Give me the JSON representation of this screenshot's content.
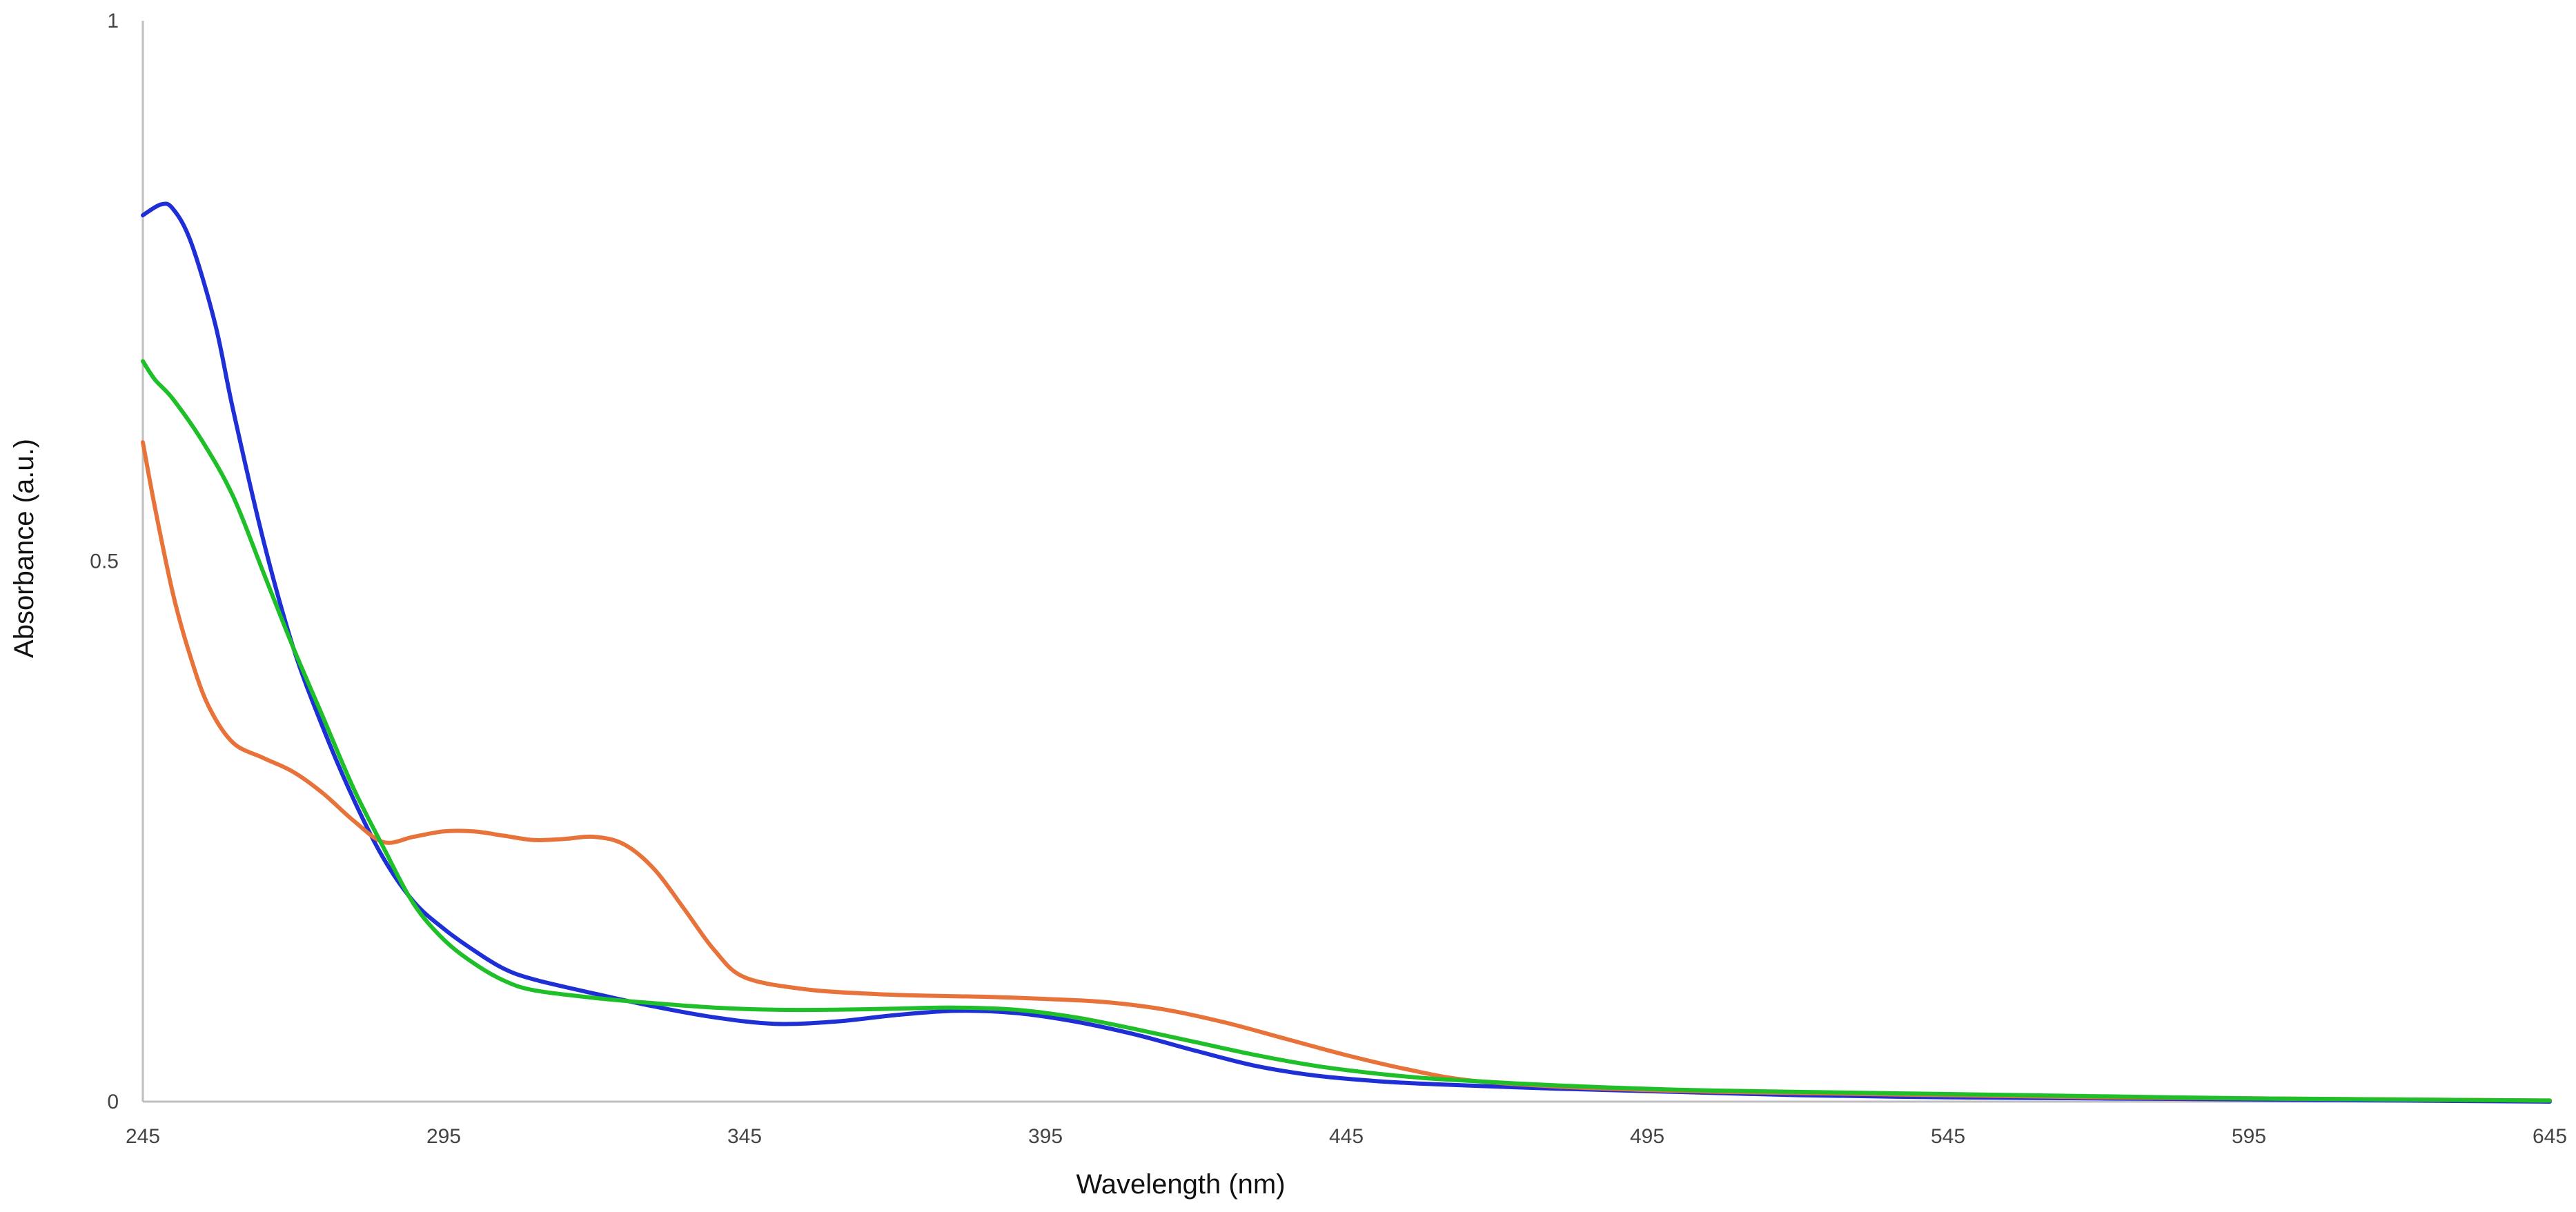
{
  "chart_data": {
    "type": "line",
    "title": "",
    "xlabel": "Wavelength (nm)",
    "ylabel": "Absorbance (a.u.)",
    "xlim": [
      245,
      645
    ],
    "ylim": [
      0,
      1
    ],
    "x_ticks": [
      "245",
      "295",
      "345",
      "395",
      "445",
      "495",
      "545",
      "595",
      "645"
    ],
    "y_ticks": [
      "0",
      "0.5",
      "1"
    ],
    "grid": false,
    "legend": "none",
    "series": [
      {
        "color": "#1f2fd6",
        "points": [
          [
            245,
            0.82
          ],
          [
            248,
            0.83
          ],
          [
            250,
            0.826
          ],
          [
            253,
            0.795
          ],
          [
            257,
            0.72
          ],
          [
            260,
            0.64
          ],
          [
            265,
            0.52
          ],
          [
            270,
            0.42
          ],
          [
            275,
            0.345
          ],
          [
            280,
            0.28
          ],
          [
            285,
            0.225
          ],
          [
            290,
            0.185
          ],
          [
            295,
            0.16
          ],
          [
            300,
            0.14
          ],
          [
            305,
            0.123
          ],
          [
            310,
            0.113
          ],
          [
            320,
            0.1
          ],
          [
            330,
            0.088
          ],
          [
            340,
            0.078
          ],
          [
            350,
            0.072
          ],
          [
            360,
            0.074
          ],
          [
            370,
            0.08
          ],
          [
            380,
            0.084
          ],
          [
            390,
            0.082
          ],
          [
            400,
            0.074
          ],
          [
            410,
            0.062
          ],
          [
            420,
            0.047
          ],
          [
            430,
            0.033
          ],
          [
            440,
            0.024
          ],
          [
            450,
            0.019
          ],
          [
            460,
            0.016
          ],
          [
            480,
            0.012
          ],
          [
            500,
            0.009
          ],
          [
            520,
            0.006
          ],
          [
            545,
            0.004
          ],
          [
            570,
            0.003
          ],
          [
            595,
            0.002
          ],
          [
            620,
            0.001
          ],
          [
            645,
            0.0
          ]
        ]
      },
      {
        "color": "#e8733a",
        "points": [
          [
            245,
            0.61
          ],
          [
            247,
            0.55
          ],
          [
            250,
            0.47
          ],
          [
            253,
            0.41
          ],
          [
            256,
            0.365
          ],
          [
            260,
            0.332
          ],
          [
            265,
            0.318
          ],
          [
            270,
            0.305
          ],
          [
            275,
            0.285
          ],
          [
            280,
            0.26
          ],
          [
            285,
            0.24
          ],
          [
            290,
            0.245
          ],
          [
            295,
            0.25
          ],
          [
            300,
            0.25
          ],
          [
            305,
            0.246
          ],
          [
            310,
            0.242
          ],
          [
            315,
            0.243
          ],
          [
            320,
            0.245
          ],
          [
            325,
            0.238
          ],
          [
            330,
            0.215
          ],
          [
            335,
            0.178
          ],
          [
            340,
            0.14
          ],
          [
            345,
            0.115
          ],
          [
            355,
            0.104
          ],
          [
            365,
            0.1
          ],
          [
            375,
            0.098
          ],
          [
            385,
            0.097
          ],
          [
            395,
            0.095
          ],
          [
            405,
            0.092
          ],
          [
            415,
            0.085
          ],
          [
            425,
            0.073
          ],
          [
            435,
            0.058
          ],
          [
            445,
            0.043
          ],
          [
            455,
            0.03
          ],
          [
            465,
            0.02
          ],
          [
            480,
            0.014
          ],
          [
            500,
            0.01
          ],
          [
            520,
            0.008
          ],
          [
            545,
            0.006
          ],
          [
            570,
            0.004
          ],
          [
            595,
            0.003
          ],
          [
            620,
            0.002
          ],
          [
            645,
            0.001
          ]
        ]
      },
      {
        "color": "#1fbf2a",
        "points": [
          [
            245,
            0.685
          ],
          [
            247,
            0.668
          ],
          [
            250,
            0.65
          ],
          [
            255,
            0.61
          ],
          [
            260,
            0.56
          ],
          [
            265,
            0.49
          ],
          [
            270,
            0.42
          ],
          [
            275,
            0.355
          ],
          [
            280,
            0.29
          ],
          [
            285,
            0.235
          ],
          [
            290,
            0.183
          ],
          [
            295,
            0.15
          ],
          [
            300,
            0.128
          ],
          [
            305,
            0.112
          ],
          [
            310,
            0.103
          ],
          [
            320,
            0.096
          ],
          [
            330,
            0.091
          ],
          [
            340,
            0.087
          ],
          [
            350,
            0.085
          ],
          [
            360,
            0.085
          ],
          [
            370,
            0.086
          ],
          [
            380,
            0.087
          ],
          [
            390,
            0.085
          ],
          [
            400,
            0.078
          ],
          [
            410,
            0.067
          ],
          [
            420,
            0.055
          ],
          [
            430,
            0.043
          ],
          [
            440,
            0.033
          ],
          [
            450,
            0.026
          ],
          [
            460,
            0.021
          ],
          [
            480,
            0.015
          ],
          [
            500,
            0.011
          ],
          [
            520,
            0.009
          ],
          [
            545,
            0.007
          ],
          [
            570,
            0.005
          ],
          [
            595,
            0.003
          ],
          [
            620,
            0.002
          ],
          [
            645,
            0.001
          ]
        ]
      }
    ]
  }
}
